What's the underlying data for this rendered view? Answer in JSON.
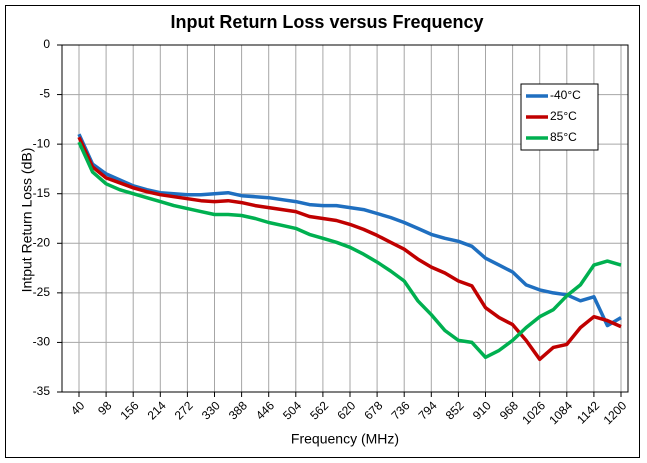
{
  "chart_data": {
    "type": "line",
    "title": "Input Return Loss versus Frequency",
    "x_label": "Frequency (MHz)",
    "y_label": "Intput Return Loss (dB)",
    "x": [
      40,
      69,
      98,
      127,
      156,
      185,
      214,
      243,
      272,
      301,
      330,
      359,
      388,
      417,
      446,
      475,
      504,
      533,
      562,
      591,
      620,
      649,
      678,
      707,
      736,
      765,
      794,
      823,
      852,
      881,
      910,
      939,
      968,
      997,
      1026,
      1055,
      1084,
      1113,
      1142,
      1171,
      1200
    ],
    "series": [
      {
        "name": "-40°C",
        "color": "#1f6fc0",
        "values": [
          -9,
          -12,
          -13,
          -13.6,
          -14.2,
          -14.6,
          -14.9,
          -15,
          -15.1,
          -15.1,
          -15,
          -14.9,
          -15.2,
          -15.3,
          -15.4,
          -15.6,
          -15.8,
          -16.1,
          -16.2,
          -16.2,
          -16.4,
          -16.6,
          -17,
          -17.4,
          -17.9,
          -18.5,
          -19.1,
          -19.5,
          -19.8,
          -20.3,
          -21.5,
          -22.2,
          -22.9,
          -24.2,
          -24.7,
          -25,
          -25.2,
          -25.8,
          -25.4,
          -28.3,
          -27.5
        ]
      },
      {
        "name": "25°C",
        "color": "#c00000",
        "values": [
          -9.3,
          -12.3,
          -13.4,
          -13.9,
          -14.4,
          -14.8,
          -15.1,
          -15.3,
          -15.5,
          -15.7,
          -15.8,
          -15.7,
          -15.9,
          -16.2,
          -16.4,
          -16.6,
          -16.8,
          -17.3,
          -17.5,
          -17.7,
          -18.1,
          -18.6,
          -19.2,
          -19.9,
          -20.6,
          -21.6,
          -22.4,
          -23,
          -23.8,
          -24.3,
          -26.5,
          -27.5,
          -28.2,
          -29.8,
          -31.7,
          -30.5,
          -30.2,
          -28.5,
          -27.4,
          -27.8,
          -28.4
        ]
      },
      {
        "name": "85°C",
        "color": "#00b050",
        "values": [
          -9.8,
          -12.8,
          -14,
          -14.6,
          -15,
          -15.4,
          -15.8,
          -16.2,
          -16.5,
          -16.8,
          -17.1,
          -17.1,
          -17.2,
          -17.5,
          -17.9,
          -18.2,
          -18.5,
          -19.1,
          -19.5,
          -19.9,
          -20.4,
          -21.1,
          -21.9,
          -22.8,
          -23.8,
          -25.8,
          -27.2,
          -28.8,
          -29.8,
          -30,
          -31.5,
          -30.8,
          -29.8,
          -28.5,
          -27.4,
          -26.7,
          -25.3,
          -24.2,
          -22.2,
          -21.8,
          -22.2
        ]
      }
    ],
    "xlim": [
      40,
      1200
    ],
    "xticks": [
      40,
      98,
      156,
      214,
      272,
      330,
      388,
      446,
      504,
      562,
      620,
      678,
      736,
      794,
      852,
      910,
      968,
      1026,
      1084,
      1142,
      1200
    ],
    "ylim": [
      -35,
      0
    ],
    "yticks": [
      0,
      -5,
      -10,
      -15,
      -20,
      -25,
      -30,
      -35
    ],
    "grid": true,
    "legend": "upper right"
  }
}
